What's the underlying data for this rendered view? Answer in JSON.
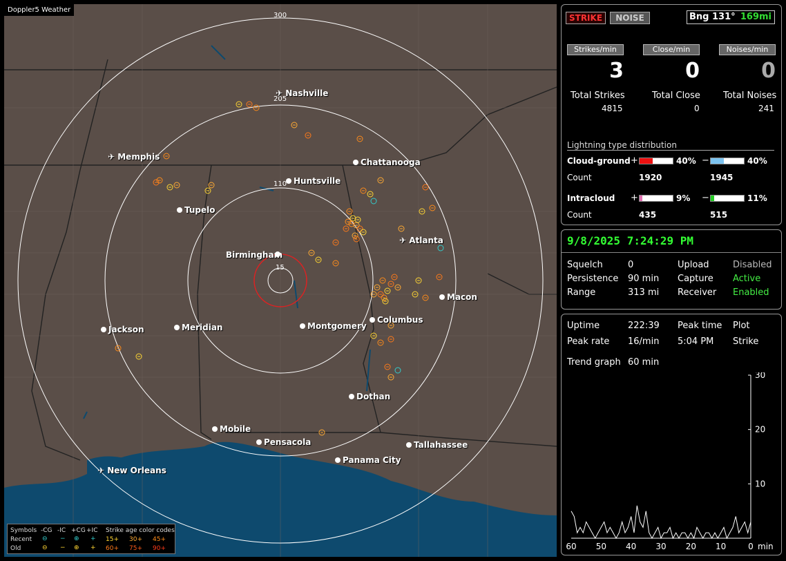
{
  "app": {
    "title": "Doppler5 Weather"
  },
  "map": {
    "ring_labels": [
      "300",
      "205",
      "110",
      "15"
    ],
    "cities": [
      {
        "name": "Nashville",
        "airport": true
      },
      {
        "name": "Memphis",
        "airport": true
      },
      {
        "name": "Chattanooga",
        "airport": false
      },
      {
        "name": "Huntsville",
        "airport": false
      },
      {
        "name": "Tupelo",
        "airport": false
      },
      {
        "name": "Atlanta",
        "airport": true
      },
      {
        "name": "Birmingham",
        "airport": false
      },
      {
        "name": "Macon",
        "airport": false
      },
      {
        "name": "Jackson",
        "airport": false
      },
      {
        "name": "Meridian",
        "airport": false
      },
      {
        "name": "Montgomery",
        "airport": false
      },
      {
        "name": "Columbus",
        "airport": false
      },
      {
        "name": "Dothan",
        "airport": false
      },
      {
        "name": "Mobile",
        "airport": false
      },
      {
        "name": "Pensacola",
        "airport": false
      },
      {
        "name": "Tallahassee",
        "airport": false
      },
      {
        "name": "Panama City",
        "airport": false
      },
      {
        "name": "New Orleans",
        "airport": true
      }
    ],
    "colors": {
      "land": "#5a4e48",
      "water": "#0e4a6e",
      "ring": "#ffffff",
      "center_ring": "#dd2222",
      "strike": "#ff8c1a",
      "strike_yellow": "#ffd633",
      "noise": "#33cccc"
    }
  },
  "legend": {
    "symbols": "Symbols",
    "cg_minus": "-CG",
    "ic_minus": "-IC",
    "cg_plus": "+CG",
    "ic_plus": "+IC",
    "age_title": "Strike age color codes",
    "recent": "Recent",
    "old": "Old",
    "age_recent": [
      "15+",
      "30+",
      "45+"
    ],
    "age_old": [
      "60+",
      "75+",
      "90+"
    ]
  },
  "status": {
    "strike_button": "STRIKE",
    "noise_button": "NOISE",
    "bearing": "Bng 131°",
    "distance": "169mi",
    "strikes_per_min_label": "Strikes/min",
    "close_per_min_label": "Close/min",
    "noises_per_min_label": "Noises/min",
    "strikes_per_min": "3",
    "close_per_min": "0",
    "noises_per_min": "0",
    "total_strikes_label": "Total Strikes",
    "total_close_label": "Total Close",
    "total_noises_label": "Total Noises",
    "total_strikes": "4815",
    "total_close": "0",
    "total_noises": "241"
  },
  "distribution": {
    "title": "Lightning type distribution",
    "cg_label": "Cloud-ground",
    "ic_label": "Intracloud",
    "count_label": "Count",
    "plus": "+",
    "minus": "−",
    "cg_plus_pct": "40%",
    "cg_minus_pct": "40%",
    "ic_plus_pct": "9%",
    "ic_minus_pct": "11%",
    "cg_plus_fraction": 0.4,
    "cg_minus_fraction": 0.4,
    "ic_plus_fraction": 0.09,
    "ic_minus_fraction": 0.11,
    "cg_plus_count": "1920",
    "cg_minus_count": "1945",
    "ic_plus_count": "435",
    "ic_minus_count": "515"
  },
  "settings": {
    "datetime": "9/8/2025 7:24:29 PM",
    "squelch_label": "Squelch",
    "squelch": "0",
    "persistence_label": "Persistence",
    "persistence": "90 min",
    "range_label": "Range",
    "range": "313 mi",
    "upload_label": "Upload",
    "upload": "Disabled",
    "capture_label": "Capture",
    "capture": "Active",
    "receiver_label": "Receiver",
    "receiver": "Enabled"
  },
  "trend": {
    "uptime_label": "Uptime",
    "uptime": "222:39",
    "peak_time_label": "Peak time",
    "plot_label": "Plot",
    "peak_rate_label": "Peak rate",
    "peak_rate": "16/min",
    "peak_time": "5:04 PM",
    "plot": "Strike",
    "trend_graph_label": "Trend graph",
    "trend_graph": "60 min",
    "x_ticks": [
      "60",
      "50",
      "40",
      "30",
      "20",
      "10",
      "0"
    ],
    "x_unit": "min",
    "y_ticks": [
      "30",
      "20",
      "10"
    ]
  },
  "chart_data": {
    "type": "line",
    "x": [
      60,
      59,
      58,
      57,
      56,
      55,
      54,
      53,
      52,
      51,
      50,
      49,
      48,
      47,
      46,
      45,
      44,
      43,
      42,
      41,
      40,
      39,
      38,
      37,
      36,
      35,
      34,
      33,
      32,
      31,
      30,
      29,
      28,
      27,
      26,
      25,
      24,
      23,
      22,
      21,
      20,
      19,
      18,
      17,
      16,
      15,
      14,
      13,
      12,
      11,
      10,
      9,
      8,
      7,
      6,
      5,
      4,
      3,
      2,
      1,
      0
    ],
    "series": [
      {
        "values": [
          5,
          4,
          1,
          2,
          1,
          3,
          2,
          1,
          0,
          1,
          2,
          3,
          1,
          2,
          1,
          0,
          1,
          3,
          1,
          2,
          4,
          1,
          6,
          3,
          2,
          5,
          1,
          0,
          1,
          2,
          0,
          1,
          1,
          2,
          0,
          1,
          0,
          1,
          1,
          0,
          1,
          0,
          2,
          1,
          0,
          1,
          1,
          0,
          1,
          0,
          1,
          2,
          0,
          1,
          2,
          4,
          1,
          2,
          3,
          1,
          3
        ]
      }
    ],
    "ylim": [
      0,
      30
    ],
    "xlabel": "min"
  }
}
